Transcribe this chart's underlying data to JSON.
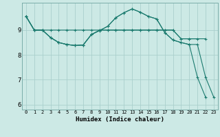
{
  "xlabel": "Humidex (Indice chaleur)",
  "ylabel": "",
  "bg_color": "#cce9e5",
  "grid_color": "#aacfcc",
  "line_color": "#1a7a6e",
  "xlim": [
    -0.5,
    23.5
  ],
  "ylim": [
    5.8,
    10.1
  ],
  "yticks": [
    6,
    7,
    8,
    9
  ],
  "xticks": [
    0,
    1,
    2,
    3,
    4,
    5,
    6,
    7,
    8,
    9,
    10,
    11,
    12,
    13,
    14,
    15,
    16,
    17,
    18,
    19,
    20,
    21,
    22,
    23
  ],
  "series": [
    {
      "x": [
        0,
        1,
        2,
        3,
        4,
        5,
        6,
        7,
        8,
        9,
        10,
        11,
        12,
        13,
        14,
        15,
        16,
        17,
        18,
        19,
        20,
        21
      ],
      "y": [
        9.55,
        9.0,
        9.0,
        9.0,
        9.0,
        9.0,
        9.0,
        9.0,
        9.0,
        9.0,
        9.0,
        9.0,
        9.0,
        9.0,
        9.0,
        9.0,
        9.0,
        9.0,
        9.0,
        8.65,
        8.65,
        8.65
      ]
    },
    {
      "x": [
        0,
        1,
        2,
        3,
        4,
        5,
        6,
        7,
        8,
        9,
        10,
        11,
        12,
        13,
        14,
        15,
        16,
        17,
        18,
        19,
        20,
        22
      ],
      "y": [
        9.55,
        9.0,
        9.0,
        8.7,
        8.5,
        8.42,
        8.38,
        8.4,
        8.82,
        9.0,
        9.0,
        9.0,
        9.0,
        9.0,
        9.0,
        9.0,
        9.0,
        9.0,
        9.0,
        8.65,
        8.65,
        8.65
      ]
    },
    {
      "x": [
        0,
        1,
        2,
        3,
        4,
        5,
        6,
        7,
        8,
        9,
        10,
        11,
        12,
        13,
        14,
        15,
        16,
        17,
        18,
        19,
        20,
        21,
        22,
        23
      ],
      "y": [
        9.55,
        9.0,
        9.0,
        8.7,
        8.5,
        8.42,
        8.38,
        8.4,
        8.82,
        8.98,
        9.15,
        9.5,
        9.7,
        9.85,
        9.72,
        9.55,
        9.45,
        8.9,
        8.6,
        8.5,
        8.42,
        7.1,
        6.3,
        null
      ]
    },
    {
      "x": [
        0,
        1,
        2,
        3,
        4,
        5,
        6,
        7,
        8,
        9,
        10,
        11,
        12,
        13,
        14,
        15,
        16,
        17,
        18,
        19,
        20,
        21,
        22,
        23
      ],
      "y": [
        9.55,
        9.0,
        9.0,
        8.7,
        8.5,
        8.42,
        8.38,
        8.4,
        8.82,
        8.98,
        9.15,
        9.5,
        9.7,
        9.85,
        9.72,
        9.55,
        9.45,
        8.9,
        8.6,
        8.5,
        8.42,
        8.42,
        7.1,
        6.3
      ]
    }
  ]
}
